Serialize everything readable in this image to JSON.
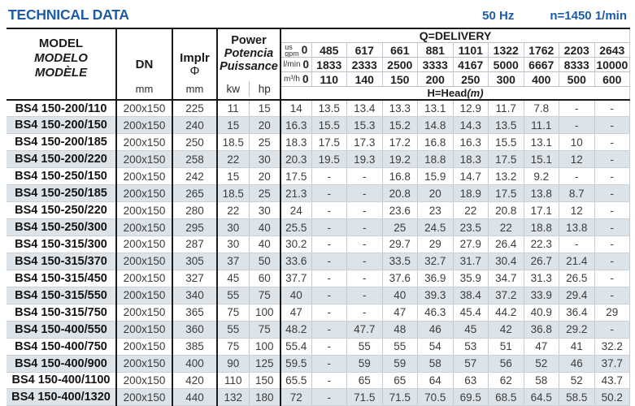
{
  "title": "TECHNICAL DATA",
  "frequency_label": "50 Hz",
  "speed_label": "n=1450 1/min",
  "accent_color": "#1d5ca6",
  "stripe_color": "#dce3e9",
  "table": {
    "column_headers": {
      "model_lines": [
        "MODEL",
        "MODELO",
        "MODÈLE"
      ],
      "dn_label": "DN",
      "dn_unit": "mm",
      "impeller_label": "Implr",
      "impeller_symbol": "Φ",
      "impeller_unit": "mm",
      "power_lines": [
        "Power",
        "Potencia",
        "Puissance"
      ],
      "power_unit_kw": "kw",
      "power_unit_hp": "hp",
      "delivery_title": "Q=DELIVERY",
      "head_label": "H=Head",
      "head_unit_suffix": "(m)"
    },
    "delivery_rows": [
      {
        "unit": "us gpm",
        "values": [
          "0",
          "485",
          "617",
          "661",
          "881",
          "1101",
          "1322",
          "1762",
          "2203",
          "2643"
        ]
      },
      {
        "unit": "l/min",
        "values": [
          "0",
          "1833",
          "2333",
          "2500",
          "3333",
          "4167",
          "5000",
          "6667",
          "8333",
          "10000"
        ]
      },
      {
        "unit": "m³/h",
        "values": [
          "0",
          "110",
          "140",
          "150",
          "200",
          "250",
          "300",
          "400",
          "500",
          "600"
        ]
      }
    ],
    "rows": [
      {
        "model": "BS4 150-200/110",
        "dn": "200x150",
        "impeller": "225",
        "kw": "11",
        "hp": "15",
        "head": [
          "14",
          "13.5",
          "13.4",
          "13.3",
          "13.1",
          "12.9",
          "11.7",
          "7.8",
          "-",
          "-"
        ]
      },
      {
        "model": "BS4 150-200/150",
        "dn": "200x150",
        "impeller": "240",
        "kw": "15",
        "hp": "20",
        "head": [
          "16.3",
          "15.5",
          "15.3",
          "15.2",
          "14.8",
          "14.3",
          "13.5",
          "11.1",
          "-",
          "-"
        ]
      },
      {
        "model": "BS4 150-200/185",
        "dn": "200x150",
        "impeller": "250",
        "kw": "18.5",
        "hp": "25",
        "head": [
          "18.3",
          "17.5",
          "17.3",
          "17.2",
          "16.8",
          "16.3",
          "15.5",
          "13.1",
          "10",
          "-"
        ]
      },
      {
        "model": "BS4 150-200/220",
        "dn": "200x150",
        "impeller": "258",
        "kw": "22",
        "hp": "30",
        "head": [
          "20.3",
          "19.5",
          "19.3",
          "19.2",
          "18.8",
          "18.3",
          "17.5",
          "15.1",
          "12",
          "-"
        ]
      },
      {
        "model": "BS4 150-250/150",
        "dn": "200x150",
        "impeller": "242",
        "kw": "15",
        "hp": "20",
        "head": [
          "17.5",
          "-",
          "-",
          "16.8",
          "15.9",
          "14.7",
          "13.2",
          "9.2",
          "-",
          "-"
        ]
      },
      {
        "model": "BS4 150-250/185",
        "dn": "200x150",
        "impeller": "265",
        "kw": "18.5",
        "hp": "25",
        "head": [
          "21.3",
          "-",
          "-",
          "20.8",
          "20",
          "18.9",
          "17.5",
          "13.8",
          "8.7",
          "-"
        ]
      },
      {
        "model": "BS4 150-250/220",
        "dn": "200x150",
        "impeller": "280",
        "kw": "22",
        "hp": "30",
        "head": [
          "24",
          "-",
          "-",
          "23.6",
          "23",
          "22",
          "20.8",
          "17.1",
          "12",
          "-"
        ]
      },
      {
        "model": "BS4 150-250/300",
        "dn": "200x150",
        "impeller": "295",
        "kw": "30",
        "hp": "40",
        "head": [
          "25.5",
          "-",
          "-",
          "25",
          "24.5",
          "23.5",
          "22",
          "18.8",
          "13.8",
          "-"
        ]
      },
      {
        "model": "BS4 150-315/300",
        "dn": "200x150",
        "impeller": "287",
        "kw": "30",
        "hp": "40",
        "head": [
          "30.2",
          "-",
          "-",
          "29.7",
          "29",
          "27.9",
          "26.4",
          "22.3",
          "-",
          "-"
        ]
      },
      {
        "model": "BS4 150-315/370",
        "dn": "200x150",
        "impeller": "305",
        "kw": "37",
        "hp": "50",
        "head": [
          "33.6",
          "-",
          "-",
          "33.5",
          "32.7",
          "31.7",
          "30.4",
          "26.7",
          "21.4",
          "-"
        ]
      },
      {
        "model": "BS4 150-315/450",
        "dn": "200x150",
        "impeller": "327",
        "kw": "45",
        "hp": "60",
        "head": [
          "37.7",
          "-",
          "-",
          "37.6",
          "36.9",
          "35.9",
          "34.7",
          "31.3",
          "26.5",
          "-"
        ]
      },
      {
        "model": "BS4 150-315/550",
        "dn": "200x150",
        "impeller": "340",
        "kw": "55",
        "hp": "75",
        "head": [
          "40",
          "-",
          "-",
          "40",
          "39.3",
          "38.4",
          "37.2",
          "33.9",
          "29.4",
          "-"
        ]
      },
      {
        "model": "BS4 150-315/750",
        "dn": "200x150",
        "impeller": "365",
        "kw": "75",
        "hp": "100",
        "head": [
          "47",
          "-",
          "-",
          "47",
          "46.3",
          "45.4",
          "44.2",
          "40.9",
          "36.4",
          "29"
        ]
      },
      {
        "model": "BS4 150-400/550",
        "dn": "200x150",
        "impeller": "360",
        "kw": "55",
        "hp": "75",
        "head": [
          "48.2",
          "-",
          "47.7",
          "48",
          "46",
          "45",
          "42",
          "36.8",
          "29.2",
          "-"
        ]
      },
      {
        "model": "BS4 150-400/750",
        "dn": "200x150",
        "impeller": "385",
        "kw": "75",
        "hp": "100",
        "head": [
          "55.4",
          "-",
          "55",
          "55",
          "54",
          "53",
          "51",
          "47",
          "41",
          "32.2"
        ]
      },
      {
        "model": "BS4 150-400/900",
        "dn": "200x150",
        "impeller": "400",
        "kw": "90",
        "hp": "125",
        "head": [
          "59.5",
          "-",
          "59",
          "59",
          "58",
          "57",
          "56",
          "52",
          "46",
          "37.7"
        ]
      },
      {
        "model": "BS4 150-400/1100",
        "dn": "200x150",
        "impeller": "420",
        "kw": "110",
        "hp": "150",
        "head": [
          "65.5",
          "-",
          "65",
          "65",
          "64",
          "63",
          "62",
          "58",
          "52",
          "43.7"
        ]
      },
      {
        "model": "BS4 150-400/1320",
        "dn": "200x150",
        "impeller": "440",
        "kw": "132",
        "hp": "180",
        "head": [
          "72",
          "-",
          "71.5",
          "71.5",
          "70.5",
          "69.5",
          "68.5",
          "64.5",
          "58.5",
          "50.2"
        ]
      }
    ]
  }
}
